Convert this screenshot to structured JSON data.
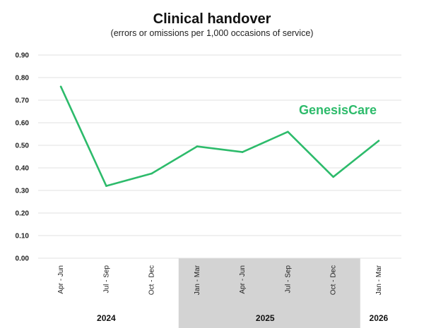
{
  "brand": {
    "name": "GenesisCare",
    "color": "#2dbb6b"
  },
  "chart_data": {
    "type": "line",
    "title": "Clinical handover",
    "subtitle": "(errors or omissions per 1,000 occasions of service)",
    "xlabel": "",
    "ylabel": "",
    "categories": [
      "Apr - Jun",
      "Jul - Sep",
      "Oct - Dec",
      "Jan - Mar",
      "Apr - Jun",
      "Jul - Sep",
      "Oct - Dec",
      "Jan - Mar"
    ],
    "series": [
      {
        "values": [
          0.76,
          0.32,
          0.375,
          0.495,
          0.47,
          0.56,
          0.36,
          0.52
        ],
        "color": "#2dbb6b"
      }
    ],
    "ylim": [
      0,
      0.9
    ],
    "yticks": [
      "0.00",
      "0.10",
      "0.20",
      "0.30",
      "0.40",
      "0.50",
      "0.60",
      "0.70",
      "0.80",
      "0.90"
    ],
    "grid": true,
    "year_groups": [
      {
        "label": "2024",
        "start": 0,
        "end": 2,
        "shaded": false
      },
      {
        "label": "2025",
        "start": 3,
        "end": 6,
        "shaded": true
      },
      {
        "label": "2026",
        "start": 7,
        "end": 7,
        "shaded": false
      }
    ],
    "shade_color": "#d3d3d3"
  }
}
